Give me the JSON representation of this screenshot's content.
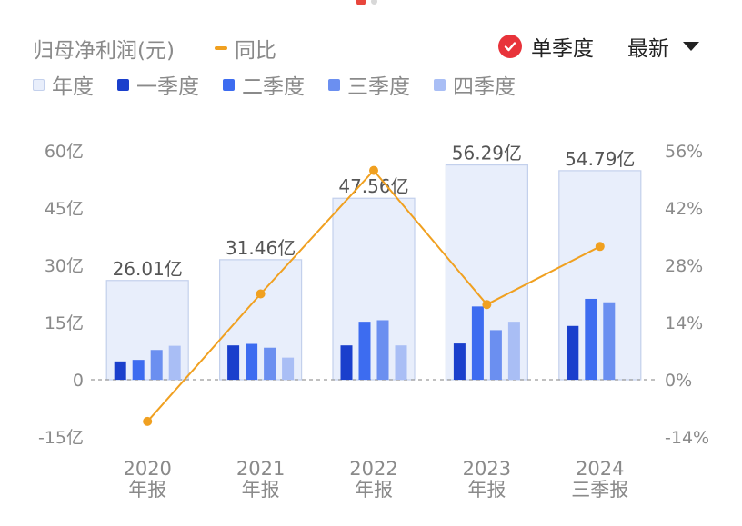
{
  "legend": {
    "profit_label": "归母净利润(元)",
    "yoy_label": "同比",
    "items": [
      {
        "label": "年度",
        "color": "#e8eefb",
        "border": "#c3d0ec"
      },
      {
        "label": "一季度",
        "color": "#1a3fcc"
      },
      {
        "label": "二季度",
        "color": "#3d6cf0"
      },
      {
        "label": "三季度",
        "color": "#6b8ff0"
      },
      {
        "label": "四季度",
        "color": "#a9bef5"
      }
    ]
  },
  "controls": {
    "single_quarter_label": "单季度",
    "single_quarter_checked": true,
    "sort_label": "最新"
  },
  "chart_data": {
    "type": "bar",
    "categories": [
      {
        "year": "2020",
        "period": "年报"
      },
      {
        "year": "2021",
        "period": "年报"
      },
      {
        "year": "2022",
        "period": "年报"
      },
      {
        "year": "2023",
        "period": "年报"
      },
      {
        "year": "2024",
        "period": "三季报"
      }
    ],
    "annual": {
      "values": [
        26.01,
        31.46,
        47.56,
        56.29,
        54.79
      ],
      "labels": [
        "26.01亿",
        "31.46亿",
        "47.56亿",
        "56.29亿",
        "54.79亿"
      ]
    },
    "quarters": [
      {
        "name": "一季度",
        "color": "#1a3fcc",
        "values": [
          4.8,
          9.0,
          9.0,
          9.5,
          14.1
        ]
      },
      {
        "name": "二季度",
        "color": "#3d6cf0",
        "values": [
          5.2,
          9.4,
          15.2,
          19.2,
          21.2
        ]
      },
      {
        "name": "三季度",
        "color": "#6b8ff0",
        "values": [
          7.8,
          8.4,
          15.6,
          13.0,
          20.3
        ]
      },
      {
        "name": "四季度",
        "color": "#a9bef5",
        "values": [
          8.9,
          5.8,
          9.0,
          15.2,
          null
        ]
      }
    ],
    "yoy": {
      "name": "同比",
      "color": "#f0a020",
      "values": [
        -10.2,
        21.0,
        51.2,
        18.4,
        32.6
      ]
    },
    "y_left": {
      "ylim": [
        -15,
        60
      ],
      "ticks": [
        60,
        45,
        30,
        15,
        0,
        -15
      ],
      "tick_labels": [
        "60亿",
        "45亿",
        "30亿",
        "15亿",
        "0",
        "-15亿"
      ]
    },
    "y_right": {
      "ylim": [
        -14,
        56
      ],
      "ticks": [
        56,
        42,
        28,
        14,
        0,
        -14
      ],
      "tick_labels": [
        "56%",
        "42%",
        "28%",
        "14%",
        "0%",
        "-14%"
      ]
    },
    "zero_line": "dashed"
  }
}
